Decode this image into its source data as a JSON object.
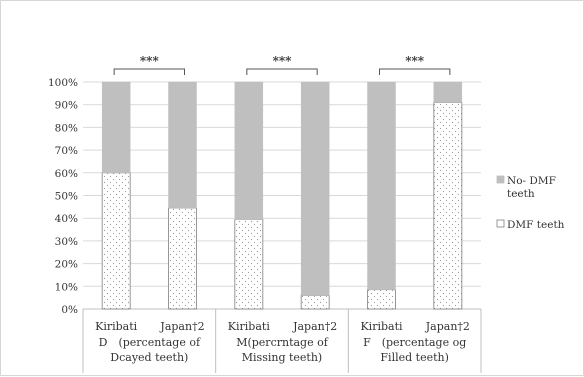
{
  "chart_data": {
    "type": "bar",
    "stacked": true,
    "percent_stacked": true,
    "title": "",
    "ylabel": "",
    "xlabel": "",
    "ylim": [
      0,
      100
    ],
    "y_ticks": [
      "0%",
      "10%",
      "20%",
      "30%",
      "40%",
      "50%",
      "60%",
      "70%",
      "80%",
      "90%",
      "100%"
    ],
    "grid": true,
    "legend_position": "right",
    "groups": [
      {
        "label_lines": [
          "D　(percentage of",
          "Dcayed teeth)"
        ],
        "significance": "***",
        "bars": [
          {
            "category": "Kiribati",
            "dmf_teeth": 60,
            "no_dmf_teeth": 40
          },
          {
            "category": "Japan†2",
            "dmf_teeth": 44.5,
            "no_dmf_teeth": 55.5
          }
        ]
      },
      {
        "label_lines": [
          "M(percrntage of",
          "Missing teeth)"
        ],
        "significance": "***",
        "bars": [
          {
            "category": "Kiribati",
            "dmf_teeth": 39.5,
            "no_dmf_teeth": 60.5
          },
          {
            "category": "Japan†2",
            "dmf_teeth": 6,
            "no_dmf_teeth": 94
          }
        ]
      },
      {
        "label_lines": [
          "F　(percentage og",
          "Filled teeth)"
        ],
        "significance": "***",
        "bars": [
          {
            "category": "Kiribati",
            "dmf_teeth": 8.5,
            "no_dmf_teeth": 91.5
          },
          {
            "category": "Japan†2",
            "dmf_teeth": 91,
            "no_dmf_teeth": 9
          }
        ]
      }
    ],
    "series": [
      {
        "key": "no_dmf_teeth",
        "name_lines": [
          "No- DMF",
          "teeth"
        ],
        "color": "#bfbfbf",
        "pattern": "solid"
      },
      {
        "key": "dmf_teeth",
        "name_lines": [
          "DMF teeth"
        ],
        "color": "#ffffff",
        "pattern": "dotted"
      }
    ],
    "colors": {
      "grid": "#d9d9d9",
      "axis": "#bfbfbf",
      "bar_outline": "#7f7f7f",
      "dot": "#9a9a9a"
    }
  }
}
